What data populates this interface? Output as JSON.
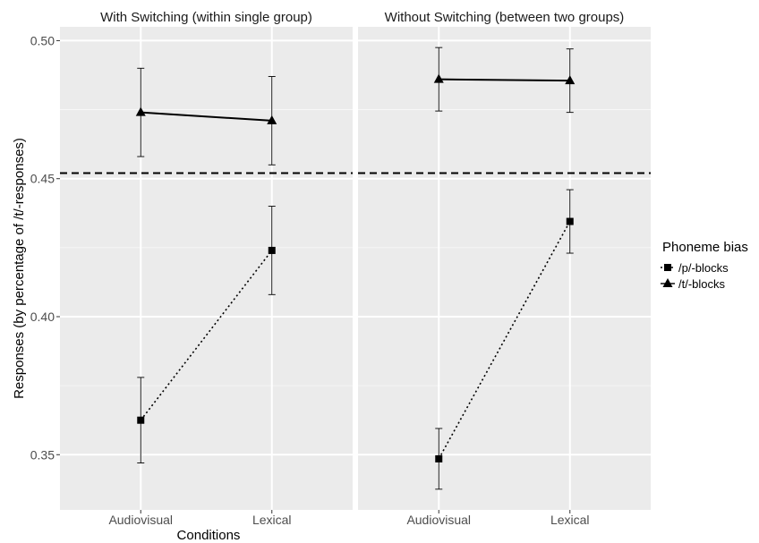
{
  "chart_data": {
    "type": "line",
    "xlabel": "Conditions",
    "ylabel": "Responses (by percentage of /t/-responses)",
    "categories": [
      "Audiovisual",
      "Lexical"
    ],
    "ylim": [
      0.33,
      0.505
    ],
    "yticks": [
      0.35,
      0.4,
      0.45,
      0.5
    ],
    "ytick_labels": [
      "0.35",
      "0.40",
      "0.45",
      "0.50"
    ],
    "reference_line": {
      "y": 0.452,
      "style": "dashed"
    },
    "grid": true,
    "legend": {
      "title": "Phoneme bias",
      "position": "right",
      "entries": [
        {
          "label": "/p/-blocks",
          "marker": "square",
          "line": "dotted"
        },
        {
          "label": "/t/-blocks",
          "marker": "triangle",
          "line": "solid"
        }
      ]
    },
    "panels": [
      {
        "title": "With Switching (within single group)",
        "series": [
          {
            "name": "/p/-blocks",
            "marker": "square",
            "line": "dotted",
            "values": [
              0.3625,
              0.424
            ],
            "lower": [
              0.347,
              0.408
            ],
            "upper": [
              0.378,
              0.44
            ]
          },
          {
            "name": "/t/-blocks",
            "marker": "triangle",
            "line": "solid",
            "values": [
              0.474,
              0.471
            ],
            "lower": [
              0.458,
              0.455
            ],
            "upper": [
              0.49,
              0.487
            ]
          }
        ]
      },
      {
        "title": "Without Switching (between two groups)",
        "series": [
          {
            "name": "/p/-blocks",
            "marker": "square",
            "line": "dotted",
            "values": [
              0.3485,
              0.4345
            ],
            "lower": [
              0.3375,
              0.423
            ],
            "upper": [
              0.3595,
              0.446
            ]
          },
          {
            "name": "/t/-blocks",
            "marker": "triangle",
            "line": "solid",
            "values": [
              0.486,
              0.4855
            ],
            "lower": [
              0.4745,
              0.474
            ],
            "upper": [
              0.4975,
              0.497
            ]
          }
        ]
      }
    ]
  },
  "colors": {
    "panel_bg": "#ebebeb",
    "strip_bg": "#ffffff",
    "grid": "#ffffff",
    "data": "#000000",
    "axis_text": "#4d4d4d"
  }
}
